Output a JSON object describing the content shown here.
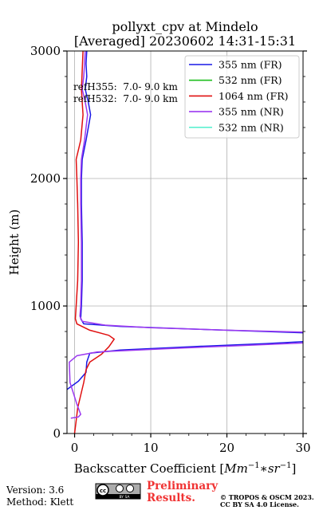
{
  "chart_data": {
    "type": "line",
    "title": "pollyxt_cpv at Mindelo",
    "subtitle": "[Averaged] 20230602 14:31-15:31",
    "xlabel": "Backscatter Coefficient [$Mm^{-1}*sr^{-1}$]",
    "xlabel_parts": {
      "prefix": "Backscatter Coefficient [",
      "math": "Mm",
      "sup1": "−1",
      "mid": "∗sr",
      "sup2": "−1",
      "suffix": "]"
    },
    "ylabel": "Height (m)",
    "xlim": [
      -1,
      30
    ],
    "ylim": [
      0,
      3000
    ],
    "xticks": [
      0,
      10,
      20,
      30
    ],
    "yticks": [
      0,
      1000,
      2000,
      3000
    ],
    "grid": true,
    "legend_position": "top-right",
    "annotations": [
      "refH355:  7.0- 9.0 km",
      "refH532:  7.0- 9.0 km"
    ],
    "series": [
      {
        "name": "355 nm (FR)",
        "color": "#1818e6",
        "points": [
          [
            -1,
            345
          ],
          [
            0.5,
            410
          ],
          [
            1.5,
            480
          ],
          [
            1.6,
            560
          ],
          [
            2,
            630
          ],
          [
            6,
            655
          ],
          [
            15,
            680
          ],
          [
            25,
            705
          ],
          [
            30,
            720
          ]
        ],
        "points_upper": [
          [
            30,
            790
          ],
          [
            25,
            800
          ],
          [
            15,
            820
          ],
          [
            6,
            840
          ],
          [
            1.2,
            860
          ],
          [
            0.8,
            900
          ],
          [
            0.9,
            1000
          ],
          [
            1,
            1200
          ],
          [
            1,
            1500
          ],
          [
            0.9,
            1800
          ],
          [
            0.9,
            2000
          ],
          [
            1,
            2150
          ],
          [
            1.5,
            2300
          ],
          [
            2.1,
            2500
          ],
          [
            1.8,
            2600
          ],
          [
            1.4,
            2700
          ],
          [
            1.6,
            2800
          ],
          [
            1.5,
            2900
          ],
          [
            1.6,
            3000
          ]
        ]
      },
      {
        "name": "532 nm (FR)",
        "color": "#1fbf1f",
        "points": []
      },
      {
        "name": "1064 nm (FR)",
        "color": "#e01010",
        "points": [
          [
            0,
            0
          ],
          [
            0.2,
            100
          ],
          [
            0.4,
            200
          ],
          [
            0.8,
            300
          ],
          [
            1.2,
            400
          ],
          [
            1.5,
            500
          ],
          [
            2,
            560
          ],
          [
            3.5,
            620
          ],
          [
            4.5,
            680
          ],
          [
            5.2,
            740
          ],
          [
            4.5,
            770
          ],
          [
            2,
            810
          ],
          [
            0.3,
            860
          ],
          [
            0.1,
            900
          ],
          [
            0.2,
            1000
          ],
          [
            0.4,
            1200
          ],
          [
            0.5,
            1500
          ],
          [
            0.4,
            1800
          ],
          [
            0.3,
            2000
          ],
          [
            0.2,
            2150
          ],
          [
            0.8,
            2300
          ],
          [
            1.1,
            2500
          ],
          [
            0.9,
            2700
          ],
          [
            1,
            2850
          ],
          [
            1.1,
            3000
          ]
        ]
      },
      {
        "name": "355 nm (NR)",
        "color": "#9b38f0",
        "points": [
          [
            -0.5,
            120
          ],
          [
            0.5,
            130
          ],
          [
            0.8,
            150
          ],
          [
            0.3,
            230
          ],
          [
            -0.6,
            400
          ],
          [
            -0.7,
            560
          ],
          [
            0.3,
            610
          ],
          [
            3,
            640
          ],
          [
            12,
            665
          ],
          [
            22,
            690
          ],
          [
            30,
            710
          ]
        ],
        "points_upper": [
          [
            30,
            795
          ],
          [
            20,
            810
          ],
          [
            10,
            830
          ],
          [
            4,
            850
          ],
          [
            1,
            880
          ],
          [
            0.7,
            920
          ],
          [
            0.8,
            1000
          ],
          [
            0.9,
            1200
          ],
          [
            0.9,
            1500
          ],
          [
            0.8,
            1800
          ],
          [
            0.8,
            2000
          ],
          [
            0.9,
            2150
          ],
          [
            1.3,
            2300
          ],
          [
            1.7,
            2500
          ],
          [
            1.4,
            2600
          ],
          [
            1,
            2700
          ],
          [
            1.2,
            2800
          ],
          [
            1.3,
            2900
          ],
          [
            1.4,
            3000
          ]
        ]
      },
      {
        "name": "532 nm (NR)",
        "color": "#5cf0d0",
        "points": []
      }
    ]
  },
  "footer": {
    "version": "Version: 3.6",
    "method": "Method: Klett",
    "prelim_line1": "Preliminary",
    "prelim_line2": "Results.",
    "license_line1": "© TROPOS & OSCM 2023.",
    "license_line2": "CC BY SA 4.0 License.",
    "cc_badge_text": "BY SA"
  }
}
